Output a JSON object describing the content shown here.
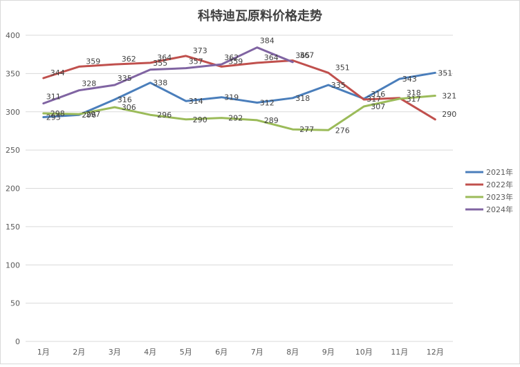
{
  "chart_data": {
    "type": "line",
    "title": "科特迪瓦原料价格走势",
    "xlabel": "",
    "ylabel": "",
    "categories": [
      "1月",
      "2月",
      "3月",
      "4月",
      "5月",
      "6月",
      "7月",
      "8月",
      "9月",
      "10月",
      "11月",
      "12月"
    ],
    "ylim": [
      0,
      400
    ],
    "yticks": [
      0,
      50,
      100,
      150,
      200,
      250,
      300,
      350,
      400
    ],
    "grid": true,
    "legend_position": "right",
    "series": [
      {
        "name": "2021年",
        "color": "#4a7ebb",
        "values": [
          293,
          296,
          316,
          338,
          314,
          319,
          312,
          318,
          335,
          317,
          343,
          351
        ]
      },
      {
        "name": "2022年",
        "color": "#c0504d",
        "values": [
          344,
          359,
          362,
          364,
          373,
          359,
          364,
          367,
          351,
          316,
          318,
          290
        ]
      },
      {
        "name": "2023年",
        "color": "#9bbb59",
        "values": [
          298,
          297,
          306,
          296,
          290,
          292,
          289,
          277,
          276,
          307,
          317,
          321
        ]
      },
      {
        "name": "2024年",
        "color": "#8064a2",
        "values": [
          311,
          328,
          335,
          355,
          357,
          362,
          384,
          365,
          null,
          null,
          null,
          null
        ]
      }
    ]
  }
}
